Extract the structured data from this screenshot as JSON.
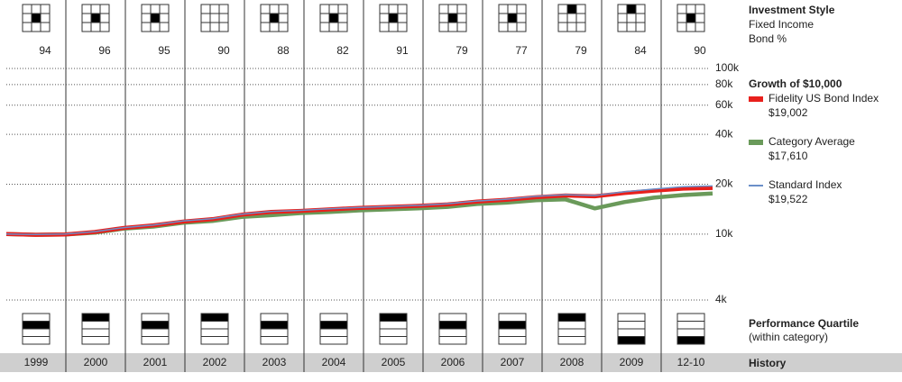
{
  "style_section": {
    "title": "Investment Style",
    "subtitle": "Fixed Income",
    "label": "Bond %"
  },
  "years": [
    "1999",
    "2000",
    "2001",
    "2002",
    "2003",
    "2004",
    "2005",
    "2006",
    "2007",
    "2008",
    "2009",
    "12-10"
  ],
  "history_label": "History",
  "style_boxes": [
    {
      "row": 1,
      "col": 1
    },
    {
      "row": 1,
      "col": 1
    },
    {
      "row": 1,
      "col": 1
    },
    null,
    {
      "row": 1,
      "col": 1
    },
    {
      "row": 1,
      "col": 1
    },
    {
      "row": 1,
      "col": 1
    },
    {
      "row": 1,
      "col": 1
    },
    {
      "row": 1,
      "col": 1
    },
    {
      "row": 0,
      "col": 1
    },
    {
      "row": 0,
      "col": 1
    },
    {
      "row": 1,
      "col": 1
    }
  ],
  "bond_pct": [
    94,
    96,
    95,
    90,
    88,
    82,
    91,
    79,
    77,
    79,
    84,
    90
  ],
  "chart_data": {
    "type": "line",
    "title": "Growth of $10,000",
    "x": [
      1999,
      1999.5,
      2000,
      2000.5,
      2001,
      2001.5,
      2002,
      2002.5,
      2003,
      2003.5,
      2004,
      2004.5,
      2005,
      2005.5,
      2006,
      2006.5,
      2007,
      2007.5,
      2008,
      2008.5,
      2009,
      2009.5,
      2010,
      2010.5,
      2011
    ],
    "xlim": [
      1999,
      2011
    ],
    "ylim": [
      4000,
      100000
    ],
    "log_scale": true,
    "yticks": [
      {
        "value": 100000,
        "label": "100k"
      },
      {
        "value": 80000,
        "label": "80k"
      },
      {
        "value": 60000,
        "label": "60k"
      },
      {
        "value": 40000,
        "label": "40k"
      },
      {
        "value": 20000,
        "label": "20k"
      },
      {
        "value": 10000,
        "label": "10k"
      },
      {
        "value": 4000,
        "label": "4k"
      }
    ],
    "series": [
      {
        "name": "Fidelity US Bond Index",
        "end_label": "$19,002",
        "color": "#e8201c",
        "line_width": 4.5,
        "values": [
          10000,
          9900,
          9950,
          10300,
          10900,
          11300,
          11900,
          12300,
          13100,
          13600,
          13800,
          14100,
          14400,
          14600,
          14800,
          15100,
          15700,
          16100,
          16700,
          17100,
          16900,
          17700,
          18300,
          18800,
          19002
        ]
      },
      {
        "name": "Category Average",
        "end_label": "$17,610",
        "color": "#6a9a5a",
        "line_width": 4.5,
        "values": [
          10000,
          9900,
          9950,
          10200,
          10800,
          11100,
          11700,
          12000,
          12700,
          13000,
          13400,
          13600,
          13900,
          14100,
          14300,
          14600,
          15200,
          15500,
          16000,
          16200,
          14300,
          15600,
          16600,
          17200,
          17610
        ]
      },
      {
        "name": "Standard Index",
        "end_label": "$19,522",
        "color": "#6b8fc9",
        "line_width": 1.5,
        "values": [
          10000,
          9950,
          10000,
          10350,
          10950,
          11350,
          12000,
          12400,
          13200,
          13700,
          13900,
          14200,
          14500,
          14700,
          14900,
          15250,
          15850,
          16250,
          16900,
          17300,
          17100,
          18000,
          18700,
          19300,
          19522
        ]
      }
    ]
  },
  "quartile": {
    "title": "Performance Quartile",
    "subtitle": "(within category)",
    "values": [
      2,
      1,
      2,
      1,
      2,
      2,
      1,
      2,
      2,
      1,
      4,
      4
    ]
  }
}
